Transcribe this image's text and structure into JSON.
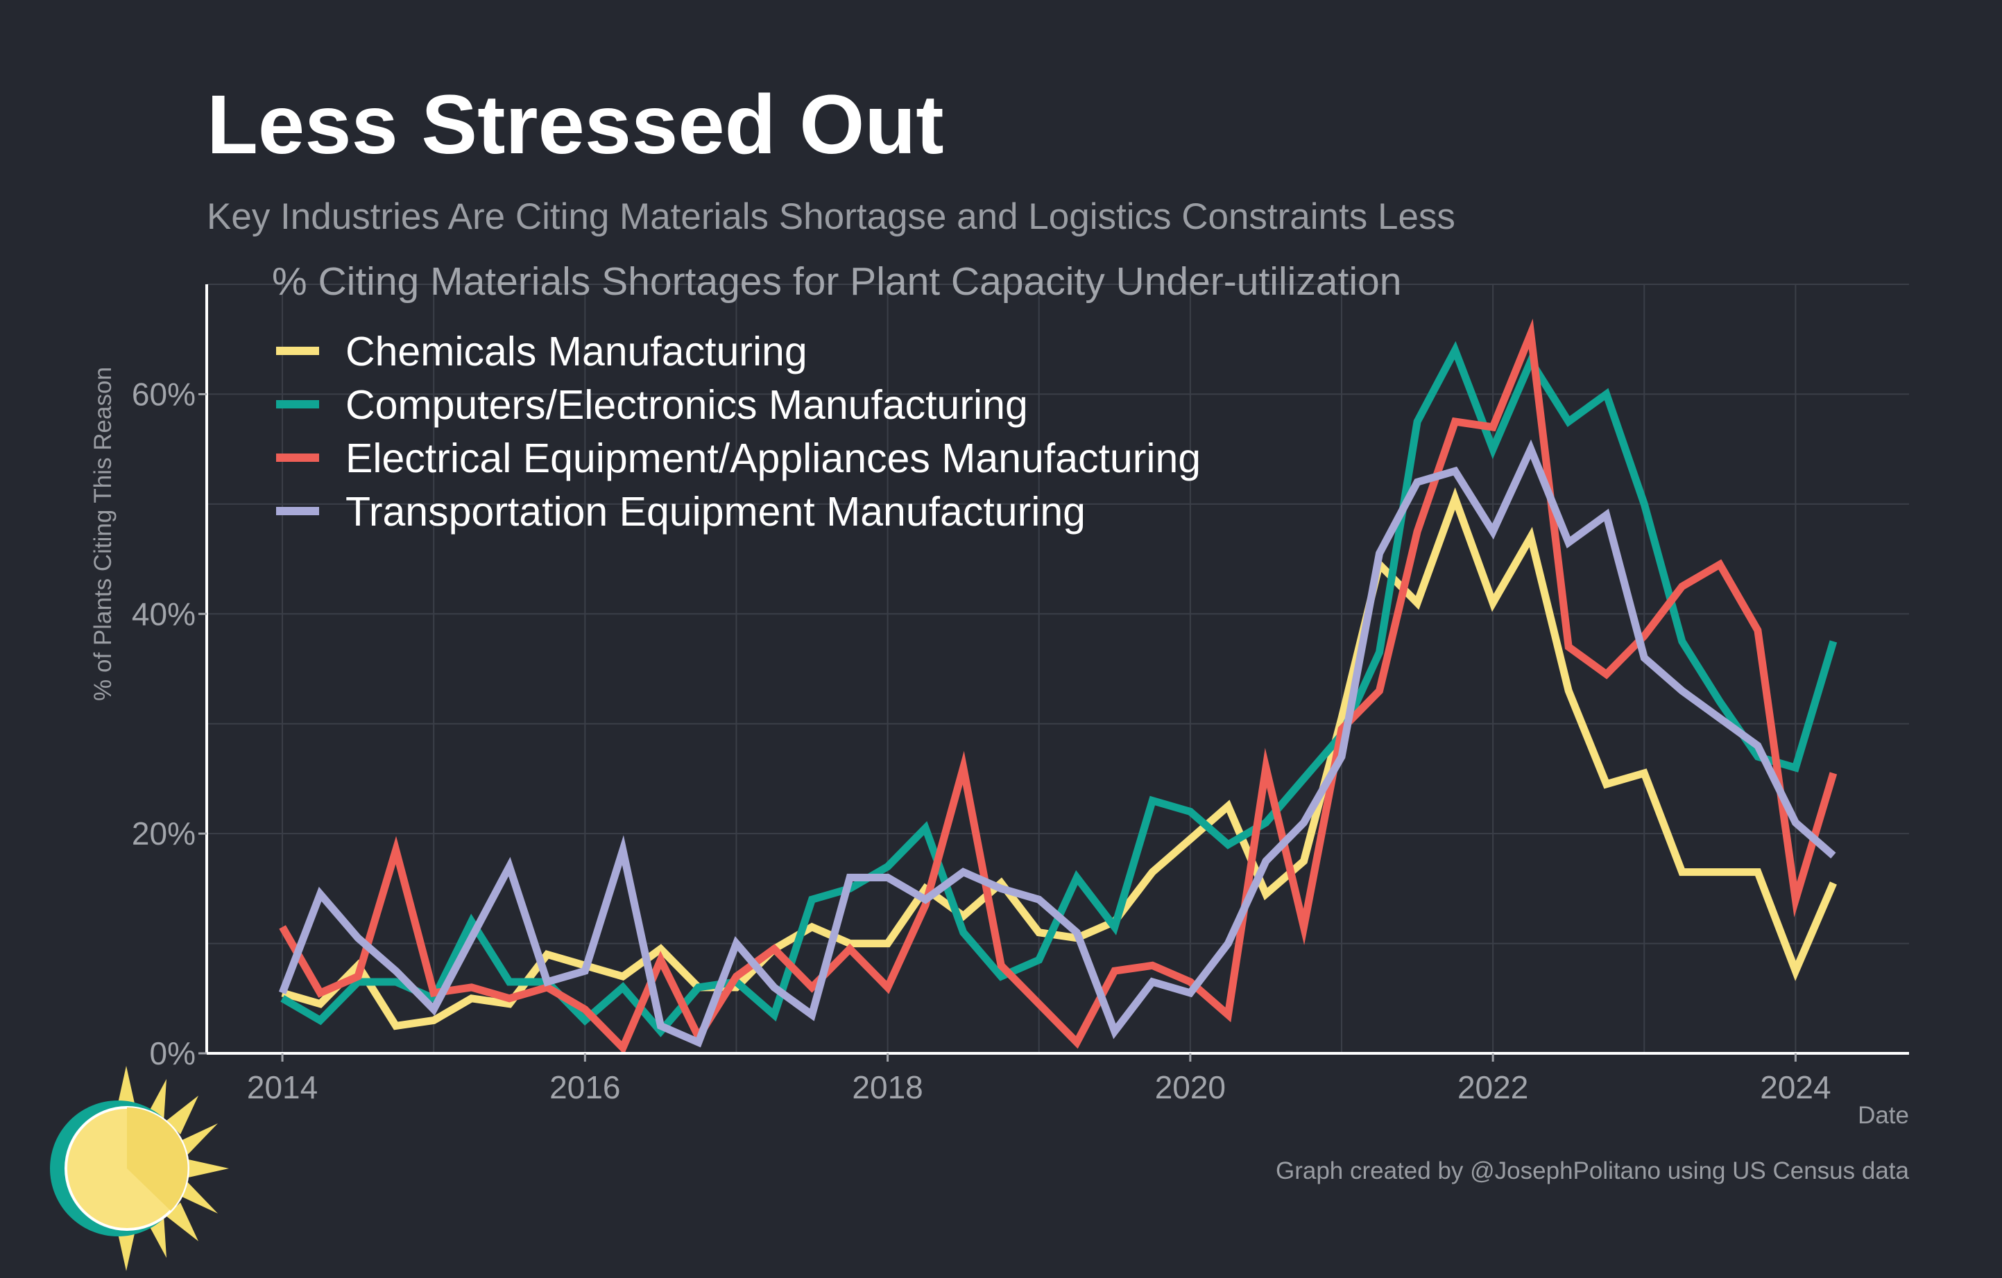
{
  "title": "Less Stressed Out",
  "subtitle": "Key Industries Are Citing Materials Shortagse and Logistics Constraints Less",
  "caption": "Graph created by @JosephPolitano using US Census data",
  "chart_data": {
    "type": "line",
    "title": "% Citing Materials Shortages for Plant Capacity Under-utilization",
    "xlabel": "Date",
    "ylabel": "% of Plants Citing This Reason",
    "xlim": [
      2013.5,
      2024.75
    ],
    "ylim": [
      0,
      70
    ],
    "x_ticks": [
      2014,
      2016,
      2018,
      2020,
      2022,
      2024
    ],
    "x_tick_labels": [
      "2014",
      "2016",
      "2018",
      "2020",
      "2022",
      "2024"
    ],
    "y_ticks": [
      0,
      20,
      40,
      60
    ],
    "y_tick_labels": [
      "0%",
      "20%",
      "40%",
      "60%"
    ],
    "grid": true,
    "legend_position": "top-left",
    "x": [
      2014,
      2014.25,
      2014.5,
      2014.75,
      2015,
      2015.25,
      2015.5,
      2015.75,
      2016,
      2016.25,
      2016.5,
      2016.75,
      2017,
      2017.25,
      2017.5,
      2017.75,
      2018,
      2018.25,
      2018.5,
      2018.75,
      2019,
      2019.25,
      2019.5,
      2019.75,
      2020,
      2020.25,
      2020.5,
      2020.75,
      2021,
      2021.25,
      2021.5,
      2021.75,
      2022,
      2022.25,
      2022.5,
      2022.75,
      2023,
      2023.25,
      2023.5,
      2023.75,
      2024,
      2024.25
    ],
    "series": [
      {
        "name": "Chemicals Manufacturing",
        "color": "#f9e27f",
        "values": [
          5.5,
          4.5,
          8,
          2.5,
          3,
          5,
          4.5,
          9,
          8,
          7,
          9.5,
          6,
          6,
          9.5,
          11.5,
          10,
          10,
          15,
          12.5,
          15.5,
          11,
          10.5,
          12,
          16.5,
          19.5,
          22.5,
          14.5,
          17.5,
          30.5,
          44.5,
          41,
          50.5,
          41,
          47,
          33,
          24.5,
          25.5,
          16.5,
          16.5,
          16.5,
          7.5,
          15.5
        ]
      },
      {
        "name": "Computers/Electronics Manufacturing",
        "color": "#10a594",
        "values": [
          5,
          3,
          6.5,
          6.5,
          5,
          12,
          6.5,
          6.5,
          3,
          6,
          2,
          6,
          6.5,
          3.5,
          14,
          15,
          17,
          20.5,
          11,
          7,
          8.5,
          16,
          11.5,
          23,
          22,
          19,
          21,
          25,
          29,
          36.5,
          57.5,
          64,
          55,
          63,
          57.5,
          60,
          50,
          37.5,
          32,
          27,
          26,
          37.5
        ]
      },
      {
        "name": "Electrical Equipment/Appliances Manufacturing",
        "color": "#ef5f57",
        "values": [
          11.5,
          5.5,
          7,
          18.5,
          5.5,
          6,
          5,
          6,
          4,
          0.5,
          8.5,
          1.5,
          7,
          9.5,
          6,
          9.5,
          6,
          13.5,
          26,
          8,
          4.5,
          1,
          7.5,
          8,
          6.5,
          3.5,
          26,
          11.5,
          29.5,
          33,
          47.5,
          57.5,
          57,
          65.5,
          37,
          34.5,
          38,
          42.5,
          44.5,
          38.5,
          14,
          25.5
        ]
      },
      {
        "name": "Transportation Equipment Manufacturing",
        "color": "#a9aad8",
        "values": [
          5.5,
          14.5,
          10.5,
          7.5,
          4,
          10.5,
          17,
          6.5,
          7.5,
          18.5,
          2.5,
          1,
          10,
          6,
          3.5,
          16,
          16,
          14,
          16.5,
          15,
          14,
          11,
          2,
          6.5,
          5.5,
          10,
          17.5,
          21,
          27,
          45.5,
          52,
          53,
          47.5,
          55,
          46.5,
          49,
          36,
          33,
          30.5,
          28,
          21,
          18
        ]
      }
    ]
  }
}
